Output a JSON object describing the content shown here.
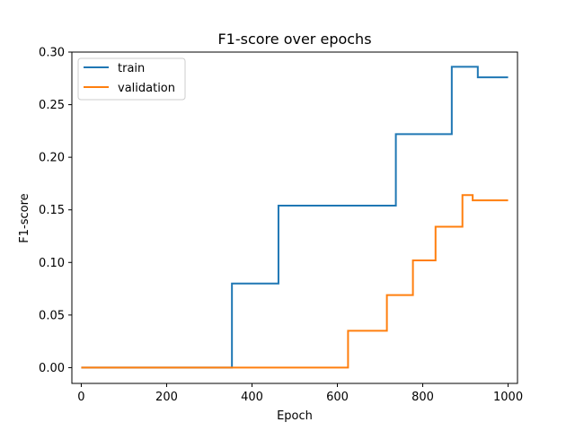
{
  "chart_data": {
    "type": "line",
    "title": "F1-score over epochs",
    "xlabel": "Epoch",
    "ylabel": "F1-score",
    "xlim": [
      -22,
      1022
    ],
    "ylim": [
      -0.015,
      0.3
    ],
    "xticks": [
      0,
      200,
      400,
      600,
      800,
      1000
    ],
    "xtick_labels": [
      "0",
      "200",
      "400",
      "600",
      "800",
      "1000"
    ],
    "yticks": [
      0.0,
      0.05,
      0.1,
      0.15,
      0.2,
      0.25,
      0.3
    ],
    "ytick_labels": [
      "0.00",
      "0.05",
      "0.10",
      "0.15",
      "0.20",
      "0.25",
      "0.30"
    ],
    "grid": false,
    "legend_position": "top-left",
    "series": [
      {
        "name": "train",
        "color": "#1f77b4",
        "step": "post",
        "x": [
          0,
          353,
          462,
          737,
          868,
          929,
          1000
        ],
        "y": [
          0.0,
          0.08,
          0.154,
          0.222,
          0.286,
          0.276,
          0.276
        ]
      },
      {
        "name": "validation",
        "color": "#ff7f0e",
        "step": "post",
        "x": [
          0,
          625,
          716,
          777,
          830,
          893,
          917,
          1000
        ],
        "y": [
          0.0,
          0.035,
          0.069,
          0.102,
          0.134,
          0.164,
          0.159,
          0.159
        ]
      }
    ]
  }
}
